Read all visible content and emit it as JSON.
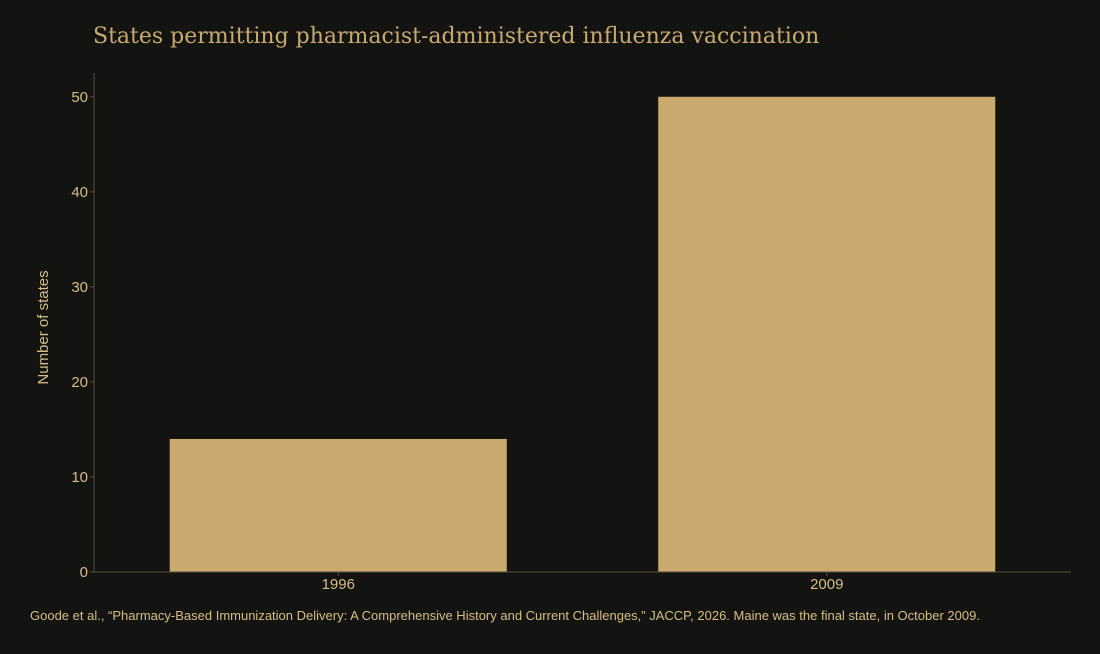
{
  "chart_data": {
    "type": "bar",
    "title": "States permitting pharmacist-administered influenza vaccination",
    "xlabel": "",
    "ylabel": "Number of states",
    "categories": [
      "1996",
      "2009"
    ],
    "values": [
      14,
      50
    ],
    "ylim": [
      0,
      52.5
    ],
    "yticks": [
      0,
      10,
      20,
      30,
      40,
      50
    ],
    "grid": false,
    "bar_color": "#c9a96e",
    "axis_color": "#55503f",
    "text_color": "#d8bd85"
  },
  "source_note": "Goode et al., “Pharmacy-Based Immunization Delivery: A Comprehensive History and Current Challenges,” JACCP, 2026. Maine was the final state, in October 2009."
}
